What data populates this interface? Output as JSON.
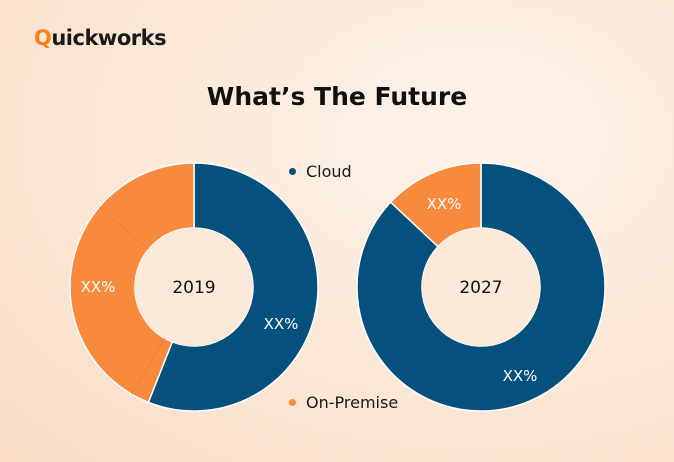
{
  "brand": {
    "q": "Q",
    "rest": "uickworks"
  },
  "colors": {
    "cloud": "#06507e",
    "on_premise": "#f78a3c",
    "divider": "#e9843a",
    "hole": "#fbe9da"
  },
  "chart_data": {
    "type": "donut",
    "title": "What’s The Future",
    "legend": [
      {
        "name": "Cloud",
        "color": "#06507e",
        "position": "top-center"
      },
      {
        "name": "On-Premise",
        "color": "#f78a3c",
        "position": "bottom-center"
      }
    ],
    "charts": [
      {
        "center_label": "2019",
        "slices": [
          {
            "name": "Cloud",
            "value": 56,
            "label": "XX%",
            "color": "#06507e"
          },
          {
            "name": "On-Premise",
            "value": 44,
            "label": "XX%",
            "color": "#f78a3c"
          }
        ]
      },
      {
        "center_label": "2027",
        "slices": [
          {
            "name": "Cloud",
            "value": 87,
            "label": "XX%",
            "color": "#06507e"
          },
          {
            "name": "On-Premise",
            "value": 13,
            "label": "XX%",
            "color": "#f78a3c"
          }
        ]
      }
    ]
  }
}
